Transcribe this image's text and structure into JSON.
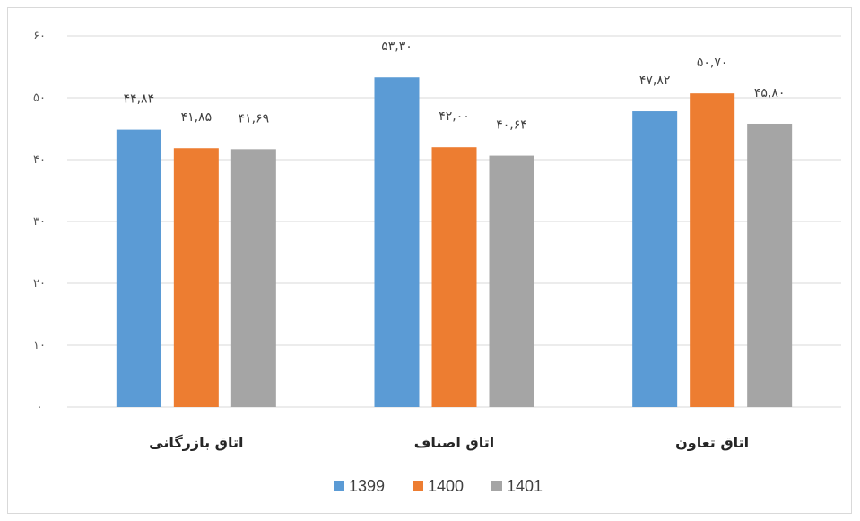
{
  "chart_data": {
    "type": "bar",
    "categories": [
      "اتاق بازرگانی",
      "اتاق اصناف",
      "اتاق تعاون"
    ],
    "series": [
      {
        "name": "1399",
        "values": [
          44.84,
          53.3,
          47.82
        ],
        "labels": [
          "۴۴,۸۴",
          "۵۳,۳۰",
          "۴۷,۸۲"
        ],
        "color": "#5b9bd5"
      },
      {
        "name": "1400",
        "values": [
          41.85,
          42.0,
          50.7
        ],
        "labels": [
          "۴۱,۸۵",
          "۴۲,۰۰",
          "۵۰,۷۰"
        ],
        "color": "#ed7d31"
      },
      {
        "name": "1401",
        "values": [
          41.69,
          40.64,
          45.8
        ],
        "labels": [
          "۴۱,۶۹",
          "۴۰,۶۴",
          "۴۵,۸۰"
        ],
        "color": "#a5a5a5"
      }
    ],
    "yticks": [
      {
        "value": 0,
        "label": "۰"
      },
      {
        "value": 10,
        "label": "۱۰"
      },
      {
        "value": 20,
        "label": "۲۰"
      },
      {
        "value": 30,
        "label": "۳۰"
      },
      {
        "value": 40,
        "label": "۴۰"
      },
      {
        "value": 50,
        "label": "۵۰"
      },
      {
        "value": 60,
        "label": "۶۰"
      }
    ],
    "ylim": [
      0,
      60
    ],
    "grid": true,
    "legend_position": "bottom",
    "title": "",
    "xlabel": "",
    "ylabel": ""
  }
}
